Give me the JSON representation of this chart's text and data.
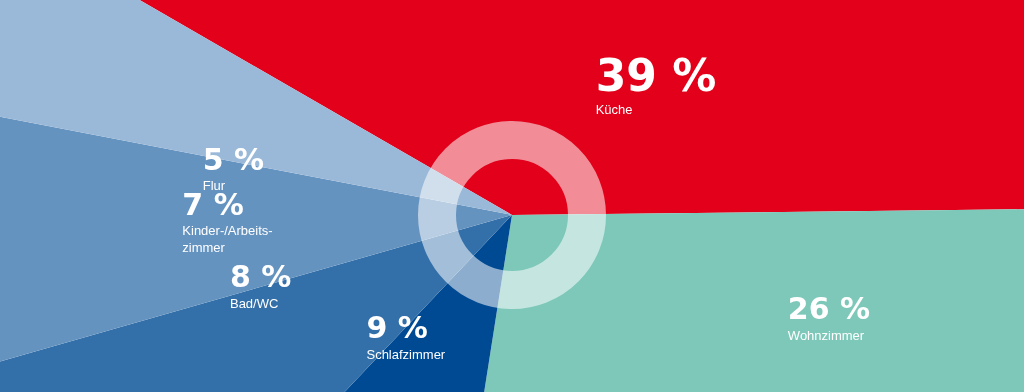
{
  "chart_data": {
    "type": "pie",
    "categories": [
      "Küche",
      "Wohnzimmer",
      "Schlafzimmer",
      "Bad/WC",
      "Kinder-/Arbeits-\nzimmer",
      "Flur"
    ],
    "values": [
      39,
      26,
      9,
      8,
      7,
      5
    ],
    "value_labels": [
      "39 %",
      "26 %",
      "9 %",
      "8 %",
      "7 %",
      "5 %"
    ],
    "colors": [
      "#e2001a",
      "#7ec8ba",
      "#004a93",
      "#336fa9",
      "#6593c0",
      "#9ab8d8"
    ],
    "legend": false
  }
}
